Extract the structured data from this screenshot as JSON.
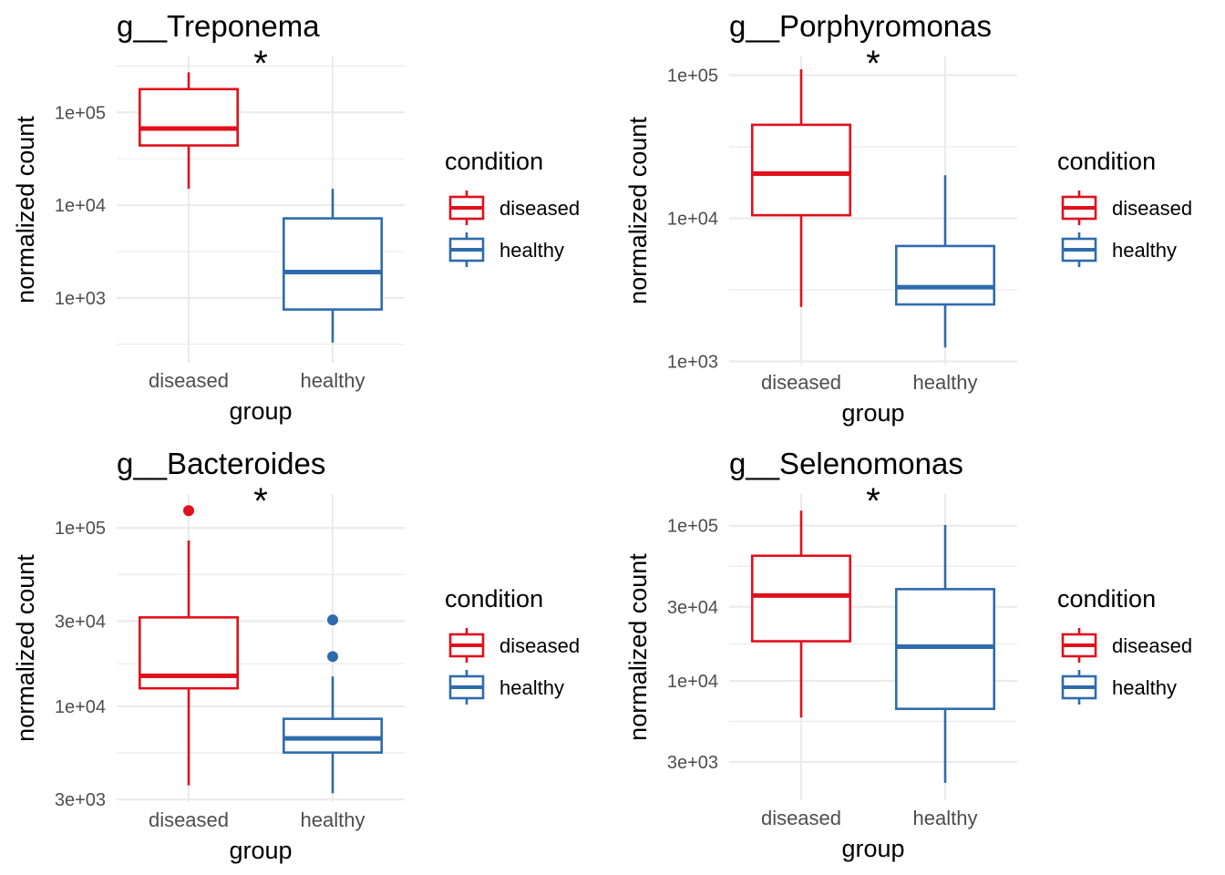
{
  "chart_data": [
    {
      "type": "box",
      "title": "g__Treponema",
      "xlabel": "group",
      "ylabel": "normalized count",
      "yscale": "log10",
      "ylim": [
        200,
        400000
      ],
      "yticks": [
        1000,
        10000,
        100000
      ],
      "ytick_labels": [
        "1e+03",
        "1e+04",
        "1e+05"
      ],
      "categories": [
        "diseased",
        "healthy"
      ],
      "boxes": [
        {
          "group": "diseased",
          "whisker_low": 15000,
          "q1": 44000,
          "median": 67000,
          "q3": 178000,
          "whisker_high": 270000,
          "outliers": []
        },
        {
          "group": "healthy",
          "whisker_low": 330,
          "q1": 750,
          "median": 1900,
          "q3": 7200,
          "whisker_high": 15000,
          "outliers": []
        }
      ],
      "annotation": "*",
      "legend": {
        "title": "condition",
        "entries": [
          "diseased",
          "healthy"
        ],
        "position": "right"
      },
      "grid": true
    },
    {
      "type": "box",
      "title": "g__Porphyromonas",
      "xlabel": "group",
      "ylabel": "normalized count",
      "yscale": "log10",
      "ylim": [
        950,
        135000
      ],
      "yticks": [
        1000,
        10000,
        100000
      ],
      "ytick_labels": [
        "1e+03",
        "1e+04",
        "1e+05"
      ],
      "categories": [
        "diseased",
        "healthy"
      ],
      "boxes": [
        {
          "group": "diseased",
          "whisker_low": 2400,
          "q1": 10500,
          "median": 20500,
          "q3": 45000,
          "whisker_high": 110000,
          "outliers": []
        },
        {
          "group": "healthy",
          "whisker_low": 1250,
          "q1": 2500,
          "median": 3300,
          "q3": 6400,
          "whisker_high": 20000,
          "outliers": []
        }
      ],
      "annotation": "*",
      "legend": {
        "title": "condition",
        "entries": [
          "diseased",
          "healthy"
        ],
        "position": "right"
      },
      "grid": true
    },
    {
      "type": "box",
      "title": "g__Bacteroides",
      "xlabel": "group",
      "ylabel": "normalized count",
      "yscale": "log10",
      "ylim": [
        2900,
        155000
      ],
      "yticks": [
        3000,
        10000,
        30000,
        100000
      ],
      "ytick_labels": [
        "3e+03",
        "1e+04",
        "3e+04",
        "1e+05"
      ],
      "categories": [
        "diseased",
        "healthy"
      ],
      "boxes": [
        {
          "group": "diseased",
          "whisker_low": 3600,
          "q1": 12600,
          "median": 14800,
          "q3": 31500,
          "whisker_high": 85000,
          "outliers": [
            125000
          ]
        },
        {
          "group": "healthy",
          "whisker_low": 3250,
          "q1": 5500,
          "median": 6600,
          "q3": 8500,
          "whisker_high": 14700,
          "outliers": [
            19000,
            30500
          ]
        }
      ],
      "annotation": "*",
      "legend": {
        "title": "condition",
        "entries": [
          "diseased",
          "healthy"
        ],
        "position": "right"
      },
      "grid": true
    },
    {
      "type": "box",
      "title": "g__Selenomonas",
      "xlabel": "group",
      "ylabel": "normalized count",
      "yscale": "log10",
      "ylim": [
        1700,
        160000
      ],
      "yticks": [
        3000,
        10000,
        30000,
        100000
      ],
      "ytick_labels": [
        "3e+03",
        "1e+04",
        "3e+04",
        "1e+05"
      ],
      "categories": [
        "diseased",
        "healthy"
      ],
      "boxes": [
        {
          "group": "diseased",
          "whisker_low": 5800,
          "q1": 18000,
          "median": 35500,
          "q3": 64000,
          "whisker_high": 125000,
          "outliers": []
        },
        {
          "group": "healthy",
          "whisker_low": 2200,
          "q1": 6600,
          "median": 16600,
          "q3": 39000,
          "whisker_high": 101000,
          "outliers": []
        }
      ],
      "annotation": "*",
      "legend": {
        "title": "condition",
        "entries": [
          "diseased",
          "healthy"
        ],
        "position": "right"
      },
      "grid": true
    }
  ],
  "colors": {
    "diseased": "#E0101C",
    "healthy": "#2E6BAE",
    "grid": "#EBEBEB",
    "text": "#000000",
    "tick_text": "#4D4D4D"
  }
}
